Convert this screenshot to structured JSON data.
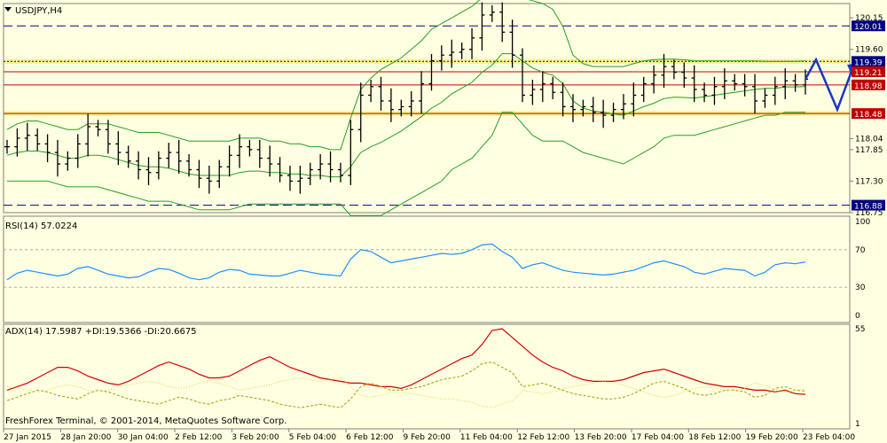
{
  "colors": {
    "background": "#ffffe1",
    "frame": "#808080",
    "bar": "#000000",
    "bollinger": "#22a022",
    "level_red": "#c00000",
    "level_blue": "#00008b",
    "support_yellow": "#f6f28a",
    "rsi_line": "#1e90ff",
    "adx_line": "#d40000",
    "plus_di": "#9aa200",
    "minus_di": "#d8d840",
    "projection": "#1c35c8",
    "label_blue_bg": "#000080",
    "label_red_bg": "#c00000",
    "label_text": "#ffffff"
  },
  "chart_data": [
    {
      "type": "ohlc",
      "title": "USDJPY,H4",
      "ylim": [
        116.75,
        120.4
      ],
      "y_ticks": [
        "120.15",
        "119.60",
        "118.04",
        "117.85",
        "117.30",
        "116.75"
      ],
      "x_tick_labels": [
        "27 Jan 2015",
        "28 Jan 20:00",
        "30 Jan 04:00",
        "2 Feb 12:00",
        "3 Feb 20:00",
        "5 Feb 04:00",
        "6 Feb 12:00",
        "9 Feb 20:00",
        "11 Feb 04:00",
        "12 Feb 12:00",
        "13 Feb 20:00",
        "17 Feb 04:00",
        "18 Feb 12:00",
        "19 Feb 20:00",
        "23 Feb 04:00"
      ],
      "levels": [
        {
          "value": 120.01,
          "label": "120.01",
          "style": "dashed",
          "color": "blue"
        },
        {
          "value": 119.39,
          "label": "119.39",
          "style": "dotted",
          "color": "blue"
        },
        {
          "value": 119.21,
          "label": "119.21",
          "style": "solid",
          "color": "red"
        },
        {
          "value": 118.98,
          "label": "118.98",
          "style": "solid",
          "color": "red"
        },
        {
          "value": 118.48,
          "label": "118.48",
          "style": "solid",
          "color": "red"
        },
        {
          "value": 116.88,
          "label": "116.88",
          "style": "dashed",
          "color": "blue"
        }
      ],
      "support_zones": [
        [
          119.35,
          119.43
        ],
        [
          118.44,
          118.52
        ]
      ],
      "close": [
        117.9,
        118.05,
        118.1,
        117.95,
        117.8,
        117.6,
        117.7,
        117.95,
        118.25,
        118.2,
        117.95,
        117.8,
        117.65,
        117.5,
        117.45,
        117.7,
        117.8,
        117.65,
        117.5,
        117.35,
        117.3,
        117.55,
        117.75,
        117.9,
        117.85,
        117.7,
        117.6,
        117.4,
        117.3,
        117.35,
        117.5,
        117.6,
        117.5,
        117.4,
        118.2,
        118.8,
        118.95,
        118.7,
        118.55,
        118.6,
        118.7,
        119.0,
        119.4,
        119.5,
        119.55,
        119.6,
        119.8,
        120.2,
        120.25,
        119.9,
        119.5,
        118.8,
        118.9,
        119.0,
        118.85,
        118.6,
        118.55,
        118.6,
        118.5,
        118.45,
        118.55,
        118.65,
        118.8,
        119.0,
        119.15,
        119.3,
        119.2,
        119.1,
        118.9,
        118.8,
        118.95,
        119.05,
        119.0,
        118.95,
        118.7,
        118.8,
        118.95,
        119.05,
        118.98,
        119.08
      ],
      "bollinger_upper": [
        118.2,
        118.3,
        118.35,
        118.35,
        118.3,
        118.25,
        118.2,
        118.2,
        118.3,
        118.3,
        118.3,
        118.25,
        118.2,
        118.15,
        118.15,
        118.15,
        118.1,
        118.05,
        118.0,
        118.0,
        118.0,
        118.0,
        118.0,
        118.05,
        118.05,
        118.05,
        118.0,
        118.0,
        117.95,
        117.95,
        117.9,
        117.9,
        117.85,
        117.85,
        118.4,
        118.9,
        119.1,
        119.25,
        119.35,
        119.45,
        119.6,
        119.75,
        119.95,
        120.05,
        120.15,
        120.25,
        120.35,
        120.5,
        120.55,
        120.55,
        120.55,
        120.5,
        120.45,
        120.4,
        120.3,
        120.0,
        119.5,
        119.35,
        119.3,
        119.3,
        119.3,
        119.3,
        119.35,
        119.4,
        119.42,
        119.43,
        119.43,
        119.42,
        119.4,
        119.4,
        119.4,
        119.4,
        119.4,
        119.4,
        119.4,
        119.39,
        119.39,
        119.39,
        119.39,
        119.4
      ],
      "bollinger_lower": [
        117.3,
        117.3,
        117.3,
        117.3,
        117.3,
        117.25,
        117.2,
        117.2,
        117.2,
        117.2,
        117.15,
        117.1,
        117.05,
        117.0,
        116.95,
        116.95,
        116.95,
        116.9,
        116.85,
        116.8,
        116.8,
        116.8,
        116.8,
        116.85,
        116.9,
        116.9,
        116.9,
        116.9,
        116.9,
        116.9,
        116.9,
        116.9,
        116.9,
        116.9,
        116.7,
        116.7,
        116.7,
        116.7,
        116.8,
        116.9,
        117.0,
        117.1,
        117.2,
        117.3,
        117.5,
        117.6,
        117.7,
        117.9,
        118.1,
        118.5,
        118.5,
        118.3,
        118.1,
        118.0,
        118.0,
        118.0,
        117.9,
        117.8,
        117.75,
        117.7,
        117.65,
        117.6,
        117.7,
        117.8,
        117.9,
        118.05,
        118.1,
        118.1,
        118.1,
        118.15,
        118.2,
        118.25,
        118.3,
        118.35,
        118.4,
        118.45,
        118.45,
        118.5,
        118.5,
        118.5
      ]
    },
    {
      "type": "line",
      "title": "RSI(14) 57.0224",
      "ylim": [
        0,
        100
      ],
      "y_ticks": [
        "100",
        "70",
        "30",
        "0"
      ],
      "levels": [
        70,
        30
      ],
      "values": [
        38,
        45,
        48,
        46,
        44,
        42,
        44,
        50,
        52,
        48,
        44,
        42,
        40,
        41,
        46,
        50,
        49,
        45,
        40,
        38,
        40,
        46,
        49,
        48,
        44,
        43,
        42,
        42,
        45,
        48,
        46,
        44,
        43,
        42,
        60,
        70,
        68,
        62,
        56,
        58,
        60,
        62,
        64,
        66,
        65,
        66,
        70,
        75,
        76,
        68,
        62,
        50,
        54,
        56,
        52,
        48,
        46,
        45,
        44,
        43,
        44,
        46,
        48,
        52,
        56,
        58,
        55,
        52,
        46,
        44,
        47,
        50,
        49,
        48,
        42,
        46,
        54,
        56,
        55,
        57
      ]
    },
    {
      "type": "line",
      "title": "ADX(14) 17.5987 +DI:19.5366 -DI:20.6675",
      "ylim": [
        1,
        55
      ],
      "y_ticks": [
        "55",
        "1"
      ],
      "series": [
        {
          "name": "ADX",
          "values": [
            20,
            22,
            24,
            27,
            30,
            33,
            33,
            31,
            28,
            26,
            24,
            23,
            25,
            28,
            31,
            34,
            36,
            34,
            32,
            29,
            27,
            27,
            28,
            31,
            34,
            37,
            39,
            36,
            33,
            31,
            29,
            27,
            26,
            25,
            24,
            24,
            23,
            22,
            22,
            21,
            23,
            26,
            29,
            32,
            35,
            38,
            40,
            46,
            54,
            55,
            50,
            45,
            40,
            36,
            33,
            31,
            28,
            26,
            25,
            25,
            25,
            26,
            28,
            30,
            31,
            32,
            30,
            28,
            26,
            24,
            23,
            22,
            22,
            21,
            20,
            20,
            19,
            20,
            18,
            17.6
          ]
        },
        {
          "name": "+DI",
          "values": [
            14,
            16,
            18,
            20,
            19,
            17,
            16,
            15,
            18,
            20,
            19,
            17,
            15,
            14,
            13,
            12,
            14,
            16,
            15,
            13,
            12,
            14,
            15,
            17,
            16,
            15,
            14,
            12,
            11,
            10,
            11,
            12,
            11,
            10,
            15,
            22,
            24,
            22,
            20,
            20,
            21,
            22,
            24,
            26,
            27,
            28,
            31,
            35,
            36,
            33,
            30,
            22,
            23,
            24,
            22,
            20,
            18,
            17,
            16,
            15,
            15,
            16,
            18,
            21,
            24,
            25,
            23,
            21,
            18,
            17,
            18,
            20,
            20,
            19,
            16,
            17,
            21,
            22,
            20,
            19.5
          ]
        },
        {
          "name": "-DI",
          "values": [
            22,
            21,
            20,
            19,
            20,
            22,
            23,
            22,
            20,
            19,
            20,
            22,
            23,
            24,
            25,
            24,
            22,
            21,
            22,
            24,
            25,
            24,
            22,
            20,
            21,
            22,
            23,
            25,
            26,
            27,
            26,
            25,
            26,
            27,
            22,
            17,
            16,
            17,
            19,
            19,
            18,
            17,
            16,
            15,
            15,
            14,
            13,
            11,
            10,
            12,
            14,
            20,
            19,
            18,
            19,
            21,
            22,
            23,
            24,
            25,
            24,
            23,
            21,
            19,
            17,
            16,
            17,
            19,
            21,
            22,
            21,
            20,
            20,
            21,
            24,
            23,
            20,
            19,
            20,
            20.7
          ]
        }
      ]
    }
  ],
  "footer": {
    "copyright": "FreshForex Terminal, © 2001-2014, MetaQuotes Software Corp."
  }
}
